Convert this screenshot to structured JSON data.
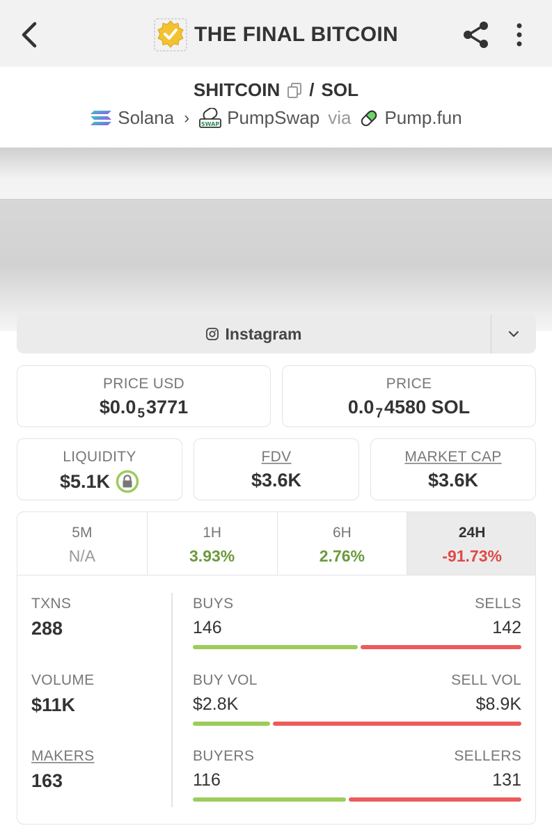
{
  "header": {
    "title": "THE FINAL BITCOIN",
    "back_icon": "back-arrow-icon",
    "share_icon": "share-icon",
    "more_icon": "more-vertical-icon"
  },
  "pair": {
    "base": "SHITCOIN",
    "separator": "/",
    "quote": "SOL",
    "chain": "Solana",
    "dex": "PumpSwap",
    "via": "via",
    "launchpad": "Pump.fun"
  },
  "social": {
    "label": "Instagram"
  },
  "stats": {
    "price_usd": {
      "label": "PRICE USD",
      "prefix": "$0.0",
      "zeros": "5",
      "digits": "3771"
    },
    "price_native": {
      "label": "PRICE",
      "prefix": "0.0",
      "zeros": "7",
      "digits": "4580 SOL"
    },
    "liquidity": {
      "label": "LIQUIDITY",
      "value": "$5.1K"
    },
    "fdv": {
      "label": "FDV",
      "value": "$3.6K"
    },
    "market_cap": {
      "label": "MARKET CAP",
      "value": "$3.6K"
    }
  },
  "timeframes": [
    {
      "label": "5M",
      "value": "N/A"
    },
    {
      "label": "1H",
      "value": "3.93%"
    },
    {
      "label": "6H",
      "value": "2.76%"
    },
    {
      "label": "24H",
      "value": "-91.73%"
    }
  ],
  "metrics": {
    "txns": {
      "label": "TXNS",
      "value": "288"
    },
    "volume": {
      "label": "VOLUME",
      "value": "$11K"
    },
    "makers": {
      "label": "MAKERS",
      "value": "163"
    }
  },
  "splits": {
    "txns": {
      "left_label": "BUYS",
      "right_label": "SELLS",
      "left_value": "146",
      "right_value": "142",
      "left_fraction": 0.507
    },
    "volume": {
      "left_label": "BUY VOL",
      "right_label": "SELL VOL",
      "left_value": "$2.8K",
      "right_value": "$8.9K",
      "left_fraction": 0.24
    },
    "makers": {
      "left_label": "BUYERS",
      "right_label": "SELLERS",
      "left_value": "116",
      "right_value": "131",
      "left_fraction": 0.47
    }
  },
  "colors": {
    "positive": "#6a9a3c",
    "negative": "#e04848",
    "buy_bar": "#9ccc5a",
    "sell_bar": "#ec5b5b"
  }
}
